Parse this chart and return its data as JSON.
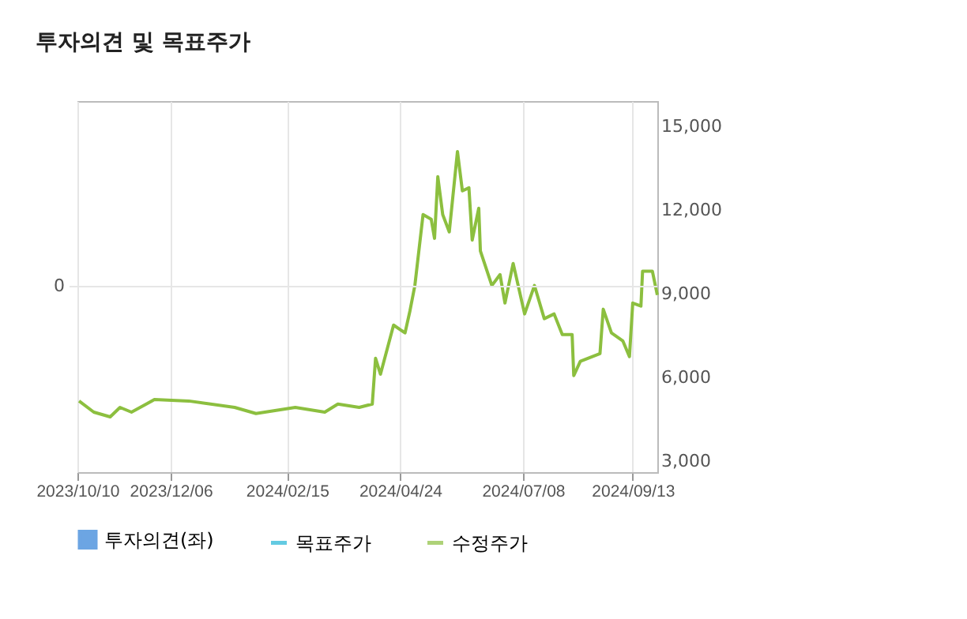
{
  "chart_data": {
    "type": "line",
    "title": "투자의견 및 목표주가",
    "xlim": [
      "2023-10-10",
      "2024-09-28"
    ],
    "xticks": [
      {
        "value": "2023-10-10",
        "label": "2023/10/10"
      },
      {
        "value": "2023-12-06",
        "label": "2023/12/06"
      },
      {
        "value": "2024-02-15",
        "label": "2024/02/15"
      },
      {
        "value": "2024-04-24",
        "label": "2024/04/24"
      },
      {
        "value": "2024-07-08",
        "label": "2024/07/08"
      },
      {
        "value": "2024-09-13",
        "label": "2024/09/13"
      }
    ],
    "annotations": [
      "0"
    ],
    "y2lim": [
      2600,
      15900
    ],
    "y2ticks": [
      {
        "value": 3000,
        "label": "3,000"
      },
      {
        "value": 6000,
        "label": "6,000"
      },
      {
        "value": 9000,
        "label": "9,000"
      },
      {
        "value": 12000,
        "label": "12,000"
      },
      {
        "value": 15000,
        "label": "15,000"
      }
    ],
    "grid": "x",
    "legend": "bottom",
    "x": [
      "2023-10-11",
      "2023-10-20",
      "2023-10-30",
      "2023-11-05",
      "2023-11-12",
      "2023-11-26",
      "2023-12-17",
      "2024-01-14",
      "2024-01-27",
      "2024-02-20",
      "2024-03-09",
      "2024-03-17",
      "2024-03-30",
      "2024-04-07",
      "2024-04-09",
      "2024-04-12",
      "2024-04-20",
      "2024-04-27",
      "2024-04-30",
      "2024-05-03",
      "2024-05-08",
      "2024-05-13",
      "2024-05-15",
      "2024-05-17",
      "2024-05-20",
      "2024-05-24",
      "2024-05-29",
      "2024-06-01",
      "2024-06-05",
      "2024-06-07",
      "2024-06-11",
      "2024-06-12",
      "2024-06-19",
      "2024-06-24",
      "2024-06-27",
      "2024-07-02",
      "2024-07-09",
      "2024-07-15",
      "2024-07-21",
      "2024-07-27",
      "2024-08-01",
      "2024-08-07",
      "2024-08-08",
      "2024-08-12",
      "2024-08-24",
      "2024-08-26",
      "2024-08-31",
      "2024-09-07",
      "2024-09-11",
      "2024-09-13",
      "2024-09-18",
      "2024-09-19",
      "2024-09-25",
      "2024-09-28"
    ],
    "series": [
      {
        "name": "투자의견(좌)",
        "type": "bar",
        "color": "#2f7fd8",
        "values": [
          null,
          null,
          null,
          null,
          null,
          null,
          null,
          null,
          null,
          null,
          null,
          null,
          null,
          null,
          null,
          null,
          null,
          null,
          null,
          null,
          null,
          null,
          null,
          null,
          null,
          null,
          null,
          null,
          null,
          null,
          null,
          null,
          null,
          null,
          null,
          null,
          null,
          null,
          null,
          null,
          null,
          null,
          null,
          null,
          null,
          null,
          null,
          null,
          null,
          null,
          null,
          null,
          null,
          null
        ]
      },
      {
        "name": "목표주가",
        "axis": "y2",
        "color": "#22b5d6",
        "values": [
          null,
          null,
          null,
          null,
          null,
          null,
          null,
          null,
          null,
          null,
          null,
          null,
          null,
          null,
          null,
          null,
          null,
          null,
          null,
          null,
          null,
          null,
          null,
          null,
          null,
          null,
          null,
          null,
          null,
          null,
          null,
          null,
          null,
          null,
          null,
          null,
          null,
          null,
          null,
          null,
          null,
          null,
          null,
          null,
          null,
          null,
          null,
          null,
          null,
          null,
          null,
          null,
          null,
          null
        ]
      },
      {
        "name": "수정주가",
        "axis": "y2",
        "color": "#8cbf3f",
        "values": [
          5150,
          4750,
          4580,
          4920,
          4750,
          5200,
          5150,
          4920,
          4700,
          4920,
          4750,
          5040,
          4920,
          5040,
          6680,
          6110,
          7870,
          7590,
          8380,
          9290,
          11830,
          11660,
          10980,
          13190,
          11830,
          11210,
          14090,
          12680,
          12790,
          10920,
          12060,
          10530,
          9290,
          9680,
          8660,
          10080,
          8270,
          9290,
          8100,
          8270,
          7530,
          7530,
          6060,
          6570,
          6850,
          8440,
          7590,
          7300,
          6740,
          8660,
          8550,
          9800,
          9800,
          8950
        ]
      }
    ]
  }
}
